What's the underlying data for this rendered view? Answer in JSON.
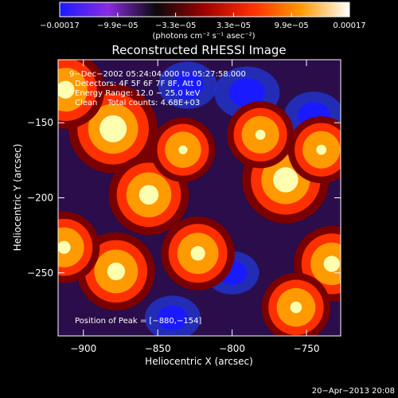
{
  "chart_data": {
    "type": "heatmap",
    "title": "Reconstructed RHESSI Image",
    "xlabel": "Heliocentric X (arcsec)",
    "ylabel": "Heliocentric Y (arcsec)",
    "xlim": [
      -917,
      -727
    ],
    "ylim": [
      -292,
      -108
    ],
    "x_ticks": [
      -900,
      -850,
      -800,
      -750
    ],
    "x_tick_labels": [
      "−900",
      "−850",
      "−800",
      "−750"
    ],
    "y_ticks": [
      -150,
      -200,
      -250
    ],
    "y_tick_labels": [
      "−150",
      "−200",
      "−250"
    ],
    "colorbar": {
      "min": -0.00017,
      "max": 0.00017,
      "tick_labels": [
        "−0.00017",
        "−9.9e−05",
        "−3.3e−05",
        "3.3e−05",
        "9.9e−05",
        "0.00017"
      ],
      "unit_label": "(photons cm⁻² s⁻¹ asec⁻²)",
      "colors": [
        "#1a1aff",
        "#8a2be2",
        "#0a0a0a",
        "#a00000",
        "#ff3000",
        "#ff9a00",
        "#ffffff"
      ]
    },
    "annotations": [
      "9−Dec−2002 05:24:04.000 to 05:27:58.000",
      "Detectors: 4F 5F 6F 7F 8F, Att 0",
      "Energy Range: 12.0 − 25.0 keV",
      "Clean    Total counts: 4.68E+03"
    ],
    "peak_label": "Position of Peak = [−880,−154]",
    "peak": [
      -880,
      -154
    ],
    "bright_sources": [
      {
        "x": -880,
        "y": -154,
        "v": 1.0
      },
      {
        "x": -764,
        "y": -188,
        "v": 0.95
      },
      {
        "x": -856,
        "y": -198,
        "v": 0.8
      },
      {
        "x": -912,
        "y": -128,
        "v": 0.75
      },
      {
        "x": -878,
        "y": -249,
        "v": 0.75
      },
      {
        "x": -733,
        "y": -244,
        "v": 0.7
      },
      {
        "x": -823,
        "y": -237,
        "v": 0.65
      },
      {
        "x": -757,
        "y": -273,
        "v": 0.55
      },
      {
        "x": -913,
        "y": -233,
        "v": 0.6
      },
      {
        "x": -781,
        "y": -158,
        "v": 0.5
      },
      {
        "x": -833,
        "y": -168,
        "v": 0.45
      },
      {
        "x": -740,
        "y": -168,
        "v": 0.5
      }
    ],
    "dark_sources": [
      {
        "x": -790,
        "y": -130,
        "v": 0.8
      },
      {
        "x": -745,
        "y": -145,
        "v": 0.6
      },
      {
        "x": -830,
        "y": -125,
        "v": 0.6
      },
      {
        "x": -840,
        "y": -280,
        "v": 0.5
      },
      {
        "x": -800,
        "y": -250,
        "v": 0.45
      }
    ]
  },
  "footer": {
    "timestamp": "20−Apr−2013 20:08"
  }
}
